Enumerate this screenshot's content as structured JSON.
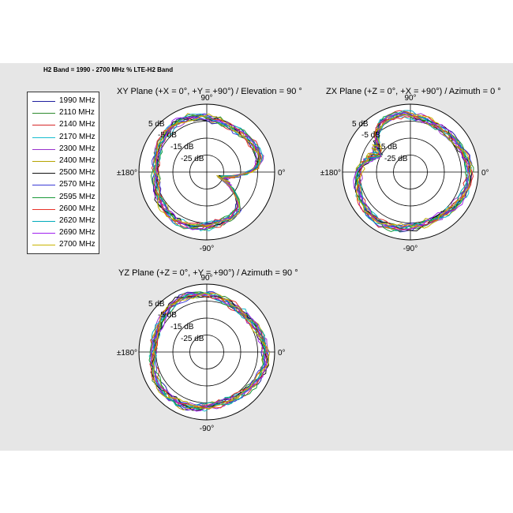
{
  "header": {
    "title": "H2 Band = 1990 - 2700 MHz % LTE-H2 Band"
  },
  "legend": {
    "items": [
      {
        "label": "1990 MHz",
        "color": "#1f1f9f"
      },
      {
        "label": "2110 MHz",
        "color": "#2e8b2e"
      },
      {
        "label": "2140 MHz",
        "color": "#d62728"
      },
      {
        "label": "2170 MHz",
        "color": "#17becf"
      },
      {
        "label": "2300 MHz",
        "color": "#9932cc"
      },
      {
        "label": "2400 MHz",
        "color": "#b5a300"
      },
      {
        "label": "2500 MHz",
        "color": "#111111"
      },
      {
        "label": "2570 MHz",
        "color": "#3a3ad6"
      },
      {
        "label": "2595 MHz",
        "color": "#1a9a3a"
      },
      {
        "label": "2600 MHz",
        "color": "#e8332a"
      },
      {
        "label": "2620 MHz",
        "color": "#00aabb"
      },
      {
        "label": "2690 MHz",
        "color": "#a020f0"
      },
      {
        "label": "2700 MHz",
        "color": "#c8b400"
      }
    ]
  },
  "chart_data": [
    {
      "type": "polar",
      "title": "XY Plane (+X = 0°, +Y = +90°) / Elevation = 90 °",
      "angle_labels": {
        "top": "90°",
        "left": "±180°",
        "right": "0°",
        "bottom": "-90°"
      },
      "radial_ticks": [
        "5 dB",
        "-5 dB",
        "-15 dB",
        "-25 dB"
      ],
      "rlim": [
        -35,
        5
      ],
      "grid": true,
      "pattern_note": "omnidirectional with null near 0 to -30 degrees",
      "series_levels_db": {
        "base": -3,
        "variation": 4
      },
      "null": {
        "angle_deg": -20,
        "depth_db": -25
      }
    },
    {
      "type": "polar",
      "title": "ZX Plane (+Z = 0°, +X = +90°) / Azimuth = 0 °",
      "angle_labels": {
        "top": "90°",
        "left": "±180°",
        "right": "0°",
        "bottom": "-90°"
      },
      "radial_ticks": [
        "5 dB",
        "-5 dB",
        "-15 dB",
        "-25 dB"
      ],
      "rlim": [
        -35,
        5
      ],
      "grid": true,
      "series_levels_db": {
        "base": -2,
        "variation": 4
      },
      "null": {
        "angle_deg": 150,
        "depth_db": -12
      }
    },
    {
      "type": "polar",
      "title": "YZ Plane (+Z = 0°, +Y = +90°) / Azimuth = 90 °",
      "angle_labels": {
        "top": "90°",
        "left": "±180°",
        "right": "0°",
        "bottom": "-90°"
      },
      "radial_ticks": [
        "5 dB",
        "-5 dB",
        "-15 dB",
        "-25 dB"
      ],
      "rlim": [
        -35,
        5
      ],
      "grid": true,
      "series_levels_db": {
        "base": -2,
        "variation": 4
      },
      "null": null
    }
  ]
}
